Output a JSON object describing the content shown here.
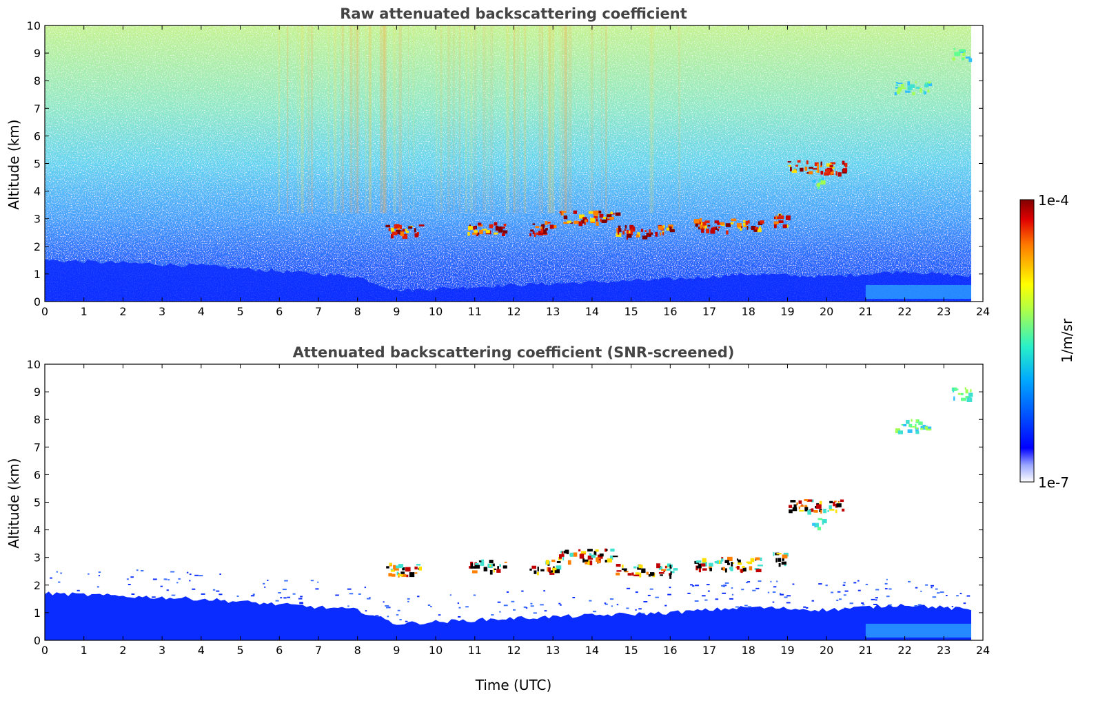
{
  "chart_data": [
    {
      "type": "heatmap",
      "title": "Raw attenuated backscattering coefficient",
      "xlabel": "",
      "ylabel": "Altitude (km)",
      "xlim": [
        0,
        24
      ],
      "ylim": [
        0,
        10
      ],
      "xticks": [
        "0",
        "1",
        "2",
        "3",
        "4",
        "5",
        "6",
        "7",
        "8",
        "9",
        "10",
        "11",
        "12",
        "13",
        "14",
        "15",
        "16",
        "17",
        "18",
        "19",
        "20",
        "21",
        "22",
        "23",
        "24"
      ],
      "yticks": [
        "0",
        "1",
        "2",
        "3",
        "4",
        "5",
        "6",
        "7",
        "8",
        "9",
        "10"
      ],
      "data_end_time": 23.7,
      "screened": false,
      "features": {
        "boundary_layer": [
          {
            "t": 0,
            "top": 1.7
          },
          {
            "t": 4,
            "top": 1.5
          },
          {
            "t": 8,
            "top": 1.1
          },
          {
            "t": 9,
            "top": 0.6
          },
          {
            "t": 12,
            "top": 0.8
          },
          {
            "t": 16,
            "top": 1.0
          },
          {
            "t": 18,
            "top": 1.2
          },
          {
            "t": 20,
            "top": 1.1
          },
          {
            "t": 22,
            "top": 1.3
          },
          {
            "t": 23.7,
            "top": 1.1
          }
        ],
        "cloud_layers": [
          {
            "t0": 8.7,
            "t1": 9.6,
            "alt": 2.6,
            "level": "high"
          },
          {
            "t0": 10.8,
            "t1": 11.8,
            "alt": 2.7,
            "level": "high"
          },
          {
            "t0": 12.4,
            "t1": 13.1,
            "alt": 2.7,
            "level": "high"
          },
          {
            "t0": 13.1,
            "t1": 14.6,
            "alt": 3.1,
            "level": "high"
          },
          {
            "t0": 14.6,
            "t1": 16.1,
            "alt": 2.6,
            "level": "high"
          },
          {
            "t0": 16.6,
            "t1": 18.3,
            "alt": 2.8,
            "level": "high"
          },
          {
            "t0": 18.6,
            "t1": 19.0,
            "alt": 3.0,
            "level": "high"
          },
          {
            "t0": 19.0,
            "t1": 20.5,
            "alt": 4.9,
            "level": "high"
          },
          {
            "t0": 19.6,
            "t1": 19.9,
            "alt": 4.3,
            "level": "mid"
          },
          {
            "t0": 21.7,
            "t1": 22.6,
            "alt": 7.8,
            "level": "mid"
          },
          {
            "t0": 23.2,
            "t1": 23.7,
            "alt": 9.0,
            "level": "mid"
          }
        ]
      }
    },
    {
      "type": "heatmap",
      "title": "Attenuated backscattering coefficient (SNR-screened)",
      "xlabel": "Time (UTC)",
      "ylabel": "Altitude (km)",
      "xlim": [
        0,
        24
      ],
      "ylim": [
        0,
        10
      ],
      "xticks": [
        "0",
        "1",
        "2",
        "3",
        "4",
        "5",
        "6",
        "7",
        "8",
        "9",
        "10",
        "11",
        "12",
        "13",
        "14",
        "15",
        "16",
        "17",
        "18",
        "19",
        "20",
        "21",
        "22",
        "23",
        "24"
      ],
      "yticks": [
        "0",
        "1",
        "2",
        "3",
        "4",
        "5",
        "6",
        "7",
        "8",
        "9",
        "10"
      ],
      "data_end_time": 23.7,
      "screened": true
    }
  ],
  "colorbar": {
    "label": "1/m/sr",
    "min_label": "1e-7",
    "max_label": "1e-4",
    "colormap": "jet",
    "scale": "log"
  }
}
